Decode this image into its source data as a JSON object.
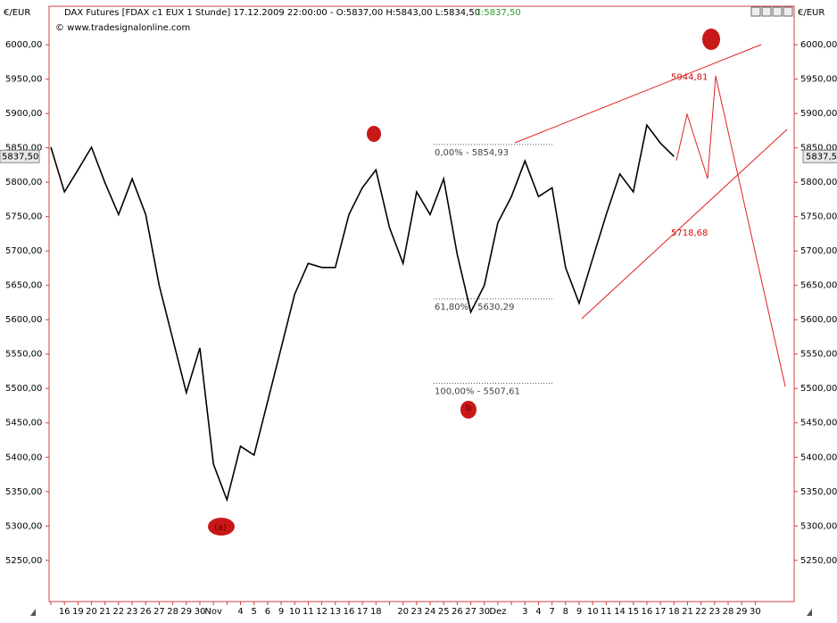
{
  "chart_data": {
    "type": "line",
    "currency_label": "€/EUR",
    "title": "DAX Futures [FDAX c1 EUX  1 Stunde] 17.12.2009 22:00:00 - O:5837,00 H:5843,00 L:5834,50",
    "title_close": "C:5837,50",
    "source": "© www.tradesignalonline.com",
    "categories": [
      null,
      "16",
      "19",
      "20",
      "21",
      "22",
      "23",
      "26",
      "27",
      "28",
      "29",
      "30",
      "Nov",
      null,
      "4",
      "5",
      "6",
      "9",
      "10",
      "11",
      "12",
      "13",
      "16",
      "17",
      "18",
      null,
      "20",
      "23",
      "24",
      "25",
      "26",
      "27",
      "30",
      "Dez",
      null,
      "3",
      "4",
      "7",
      "8",
      "9",
      "10",
      "11",
      "14",
      "15",
      "16",
      "17",
      "18",
      "21",
      "22",
      "23",
      "28",
      "29",
      "30"
    ],
    "values": [
      5851,
      5786,
      5818,
      5851,
      5799,
      5753,
      5805,
      5753,
      5650,
      5572,
      5494,
      5559,
      5390,
      5338,
      5416,
      5403,
      5481,
      5559,
      5637,
      5682,
      5676,
      5676,
      5753,
      5792,
      5818,
      5734,
      5682,
      5786,
      5753,
      5805,
      5695,
      5611,
      5650,
      5741,
      5779,
      5831,
      5779,
      5792,
      5676,
      5624,
      5689,
      5753,
      5812,
      5786,
      5883,
      5857,
      5837.5,
      null,
      null,
      null,
      null,
      null,
      null
    ],
    "color": "#000000",
    "ylim": [
      5190,
      6056
    ],
    "yticks": [
      {
        "value": 5250,
        "label": "5250,00"
      },
      {
        "value": 5300,
        "label": "5300,00"
      },
      {
        "value": 5350,
        "label": "5350,00"
      },
      {
        "value": 5400,
        "label": "5400,00"
      },
      {
        "value": 5450,
        "label": "5450,00"
      },
      {
        "value": 5500,
        "label": "5500,00"
      },
      {
        "value": 5550,
        "label": "5550,00"
      },
      {
        "value": 5600,
        "label": "5600,00"
      },
      {
        "value": 5650,
        "label": "5650,00"
      },
      {
        "value": 5700,
        "label": "5700,00"
      },
      {
        "value": 5750,
        "label": "5750,00"
      },
      {
        "value": 5800,
        "label": "5800,00"
      },
      {
        "value": 5850,
        "label": "5850,00"
      },
      {
        "value": 5900,
        "label": "5900,00"
      },
      {
        "value": 5950,
        "label": "5950,00"
      },
      {
        "value": 6000,
        "label": "6000,00"
      }
    ],
    "last_price": {
      "value": 5837.5,
      "label": "5837,50"
    },
    "fib_levels": [
      {
        "value": 5854.93,
        "label": "0,00% - 5854,93"
      },
      {
        "value": 5630.29,
        "label": "61,80% - 5630,29"
      },
      {
        "value": 5507.61,
        "label": "100,00% - 5507,61"
      }
    ],
    "targets": [
      {
        "value": 5944.81,
        "label": "5944,81"
      },
      {
        "value": 5718.68,
        "label": "5718,68"
      }
    ],
    "wave_labels": [
      "(a)",
      "b"
    ]
  }
}
